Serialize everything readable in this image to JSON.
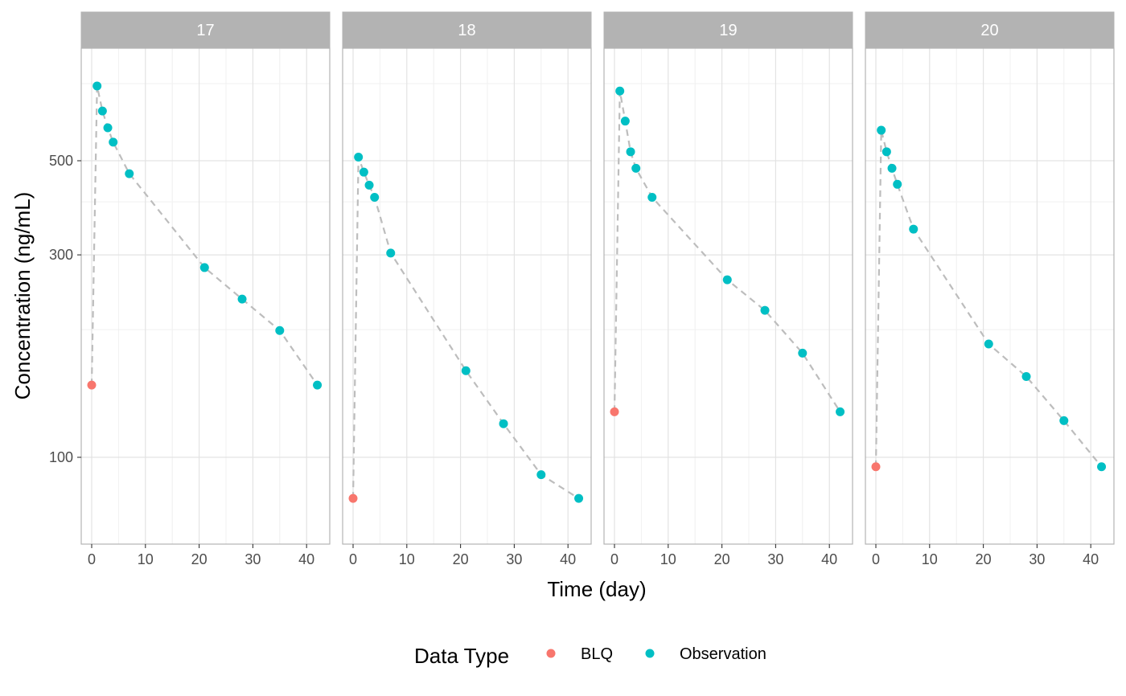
{
  "chart_data": {
    "type": "scatter",
    "xlabel": "Time (day)",
    "ylabel": "Concentration (ng/mL)",
    "x_ticks": [
      0,
      10,
      20,
      30,
      40
    ],
    "y_ticks": [
      100,
      300,
      500
    ],
    "y_scale": "log",
    "ylim": [
      72,
      790
    ],
    "xlim": [
      -2,
      44
    ],
    "grid": true,
    "connector": "dashed line through each panel's points",
    "legend": {
      "title": "Data Type",
      "position": "bottom",
      "entries": [
        {
          "label": "BLQ",
          "color": "#F8766D"
        },
        {
          "label": "Observation",
          "color": "#00BFC4"
        }
      ]
    },
    "line_color": "#bdbdbd",
    "panels": [
      {
        "label": "17",
        "points": [
          {
            "x": 0,
            "y": 148,
            "type": "BLQ"
          },
          {
            "x": 1,
            "y": 750,
            "type": "Observation"
          },
          {
            "x": 2,
            "y": 655,
            "type": "Observation"
          },
          {
            "x": 3,
            "y": 598,
            "type": "Observation"
          },
          {
            "x": 4,
            "y": 553,
            "type": "Observation"
          },
          {
            "x": 7,
            "y": 466,
            "type": "Observation"
          },
          {
            "x": 21,
            "y": 280,
            "type": "Observation"
          },
          {
            "x": 28,
            "y": 236,
            "type": "Observation"
          },
          {
            "x": 35,
            "y": 199,
            "type": "Observation"
          },
          {
            "x": 42,
            "y": 148,
            "type": "Observation"
          }
        ]
      },
      {
        "label": "18",
        "points": [
          {
            "x": 0,
            "y": 80,
            "type": "BLQ"
          },
          {
            "x": 1,
            "y": 510,
            "type": "Observation"
          },
          {
            "x": 2,
            "y": 470,
            "type": "Observation"
          },
          {
            "x": 3,
            "y": 438,
            "type": "Observation"
          },
          {
            "x": 4,
            "y": 410,
            "type": "Observation"
          },
          {
            "x": 7,
            "y": 303,
            "type": "Observation"
          },
          {
            "x": 21,
            "y": 160,
            "type": "Observation"
          },
          {
            "x": 28,
            "y": 120,
            "type": "Observation"
          },
          {
            "x": 35,
            "y": 91,
            "type": "Observation"
          },
          {
            "x": 42,
            "y": 80,
            "type": "Observation"
          }
        ]
      },
      {
        "label": "19",
        "points": [
          {
            "x": 0,
            "y": 128,
            "type": "BLQ"
          },
          {
            "x": 1,
            "y": 730,
            "type": "Observation"
          },
          {
            "x": 2,
            "y": 620,
            "type": "Observation"
          },
          {
            "x": 3,
            "y": 525,
            "type": "Observation"
          },
          {
            "x": 4,
            "y": 480,
            "type": "Observation"
          },
          {
            "x": 7,
            "y": 410,
            "type": "Observation"
          },
          {
            "x": 21,
            "y": 262,
            "type": "Observation"
          },
          {
            "x": 28,
            "y": 222,
            "type": "Observation"
          },
          {
            "x": 35,
            "y": 176,
            "type": "Observation"
          },
          {
            "x": 42,
            "y": 128,
            "type": "Observation"
          }
        ]
      },
      {
        "label": "20",
        "points": [
          {
            "x": 0,
            "y": 95,
            "type": "BLQ"
          },
          {
            "x": 1,
            "y": 590,
            "type": "Observation"
          },
          {
            "x": 2,
            "y": 525,
            "type": "Observation"
          },
          {
            "x": 3,
            "y": 480,
            "type": "Observation"
          },
          {
            "x": 4,
            "y": 440,
            "type": "Observation"
          },
          {
            "x": 7,
            "y": 345,
            "type": "Observation"
          },
          {
            "x": 21,
            "y": 185,
            "type": "Observation"
          },
          {
            "x": 28,
            "y": 155,
            "type": "Observation"
          },
          {
            "x": 35,
            "y": 122,
            "type": "Observation"
          },
          {
            "x": 42,
            "y": 95,
            "type": "Observation"
          }
        ]
      }
    ]
  }
}
